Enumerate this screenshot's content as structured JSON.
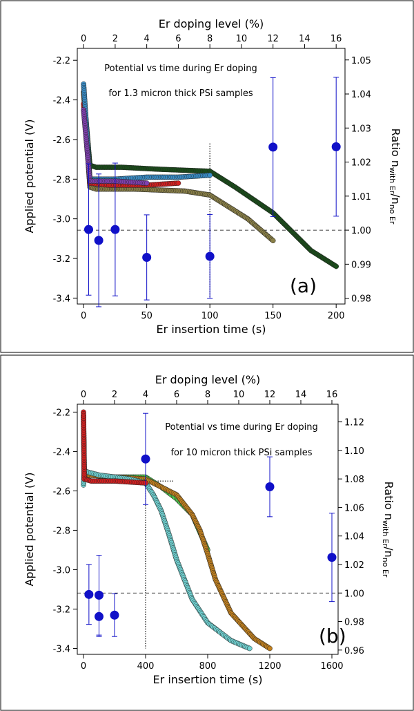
{
  "chart_data": [
    {
      "type": "scatter",
      "panel": "(a)",
      "annotation_lines": [
        "Potential vs time during Er doping",
        "for 1.3 micron thick PSi samples"
      ],
      "xlabel_bottom": "Er insertion time (s)",
      "xlabel_top": "Er doping level (%)",
      "ylabel_left": "Applied potential (V)",
      "ylabel_right": "Ratio n",
      "ylabel_right_sub1": "with Er",
      "ylabel_right_mid": "/n",
      "ylabel_right_sub2": "no Er",
      "xlim_bottom": [
        -5,
        207
      ],
      "xticks_bottom": [
        "0",
        "50",
        "100",
        "150",
        "200"
      ],
      "xlim_top": [
        -0.4,
        16.56
      ],
      "xticks_top": [
        "0",
        "2",
        "4",
        "6",
        "8",
        "10",
        "12",
        "14",
        "16"
      ],
      "ylim_left": [
        -3.43,
        -2.14
      ],
      "yticks_left": [
        "-2.2",
        "-2.4",
        "-2.6",
        "-2.8",
        "-3.0",
        "-3.2",
        "-3.4"
      ],
      "ylim_right": [
        0.9783,
        1.0534
      ],
      "yticks_right": [
        "0.98",
        "0.99",
        "1.00",
        "1.01",
        "1.02",
        "1.03",
        "1.04",
        "1.05"
      ],
      "reference_line_ratio": 1.0,
      "vertical_marker": {
        "x": 100,
        "y_from": -2.62,
        "y_to": -3.4
      },
      "potential_curves": [
        {
          "name": "dark-green",
          "color": "#1a4d1a",
          "x": [
            0,
            5,
            10,
            30,
            60,
            100,
            120,
            150,
            180,
            200
          ],
          "y": [
            -2.36,
            -2.73,
            -2.74,
            -2.74,
            -2.75,
            -2.76,
            -2.84,
            -2.97,
            -3.16,
            -3.24
          ]
        },
        {
          "name": "olive",
          "color": "#8a8048",
          "x": [
            0,
            5,
            10,
            40,
            80,
            100,
            130,
            150
          ],
          "y": [
            -2.36,
            -2.84,
            -2.85,
            -2.85,
            -2.86,
            -2.88,
            -3.0,
            -3.11
          ]
        },
        {
          "name": "red",
          "color": "#d42020",
          "x": [
            0,
            5,
            20,
            50,
            75
          ],
          "y": [
            -2.42,
            -2.82,
            -2.83,
            -2.83,
            -2.82
          ]
        },
        {
          "name": "blue",
          "color": "#3a8ec8",
          "x": [
            0,
            5,
            25,
            50,
            75,
            100
          ],
          "y": [
            -2.32,
            -2.8,
            -2.8,
            -2.79,
            -2.79,
            -2.78
          ]
        },
        {
          "name": "purple",
          "color": "#8040b0",
          "x": [
            0,
            5,
            25,
            50
          ],
          "y": [
            -2.45,
            -2.81,
            -2.81,
            -2.82
          ]
        }
      ],
      "ratio_points": {
        "color": "#1010c8",
        "x": [
          4,
          12,
          25,
          50,
          100,
          150,
          200
        ],
        "y": [
          1.0002,
          0.997,
          1.0002,
          0.992,
          0.9923,
          1.0244,
          1.0245
        ],
        "err": [
          0.0193,
          0.0195,
          0.0195,
          0.0125,
          0.0123,
          0.0204,
          0.0204
        ]
      }
    },
    {
      "type": "scatter",
      "panel": "(b)",
      "annotation_lines": [
        "Potential vs time during Er doping",
        "for 10 micron thick PSi samples"
      ],
      "xlabel_bottom": "Er insertion time (s)",
      "xlabel_top": "Er doping level (%)",
      "ylabel_left": "Applied potential (V)",
      "ylabel_right": "Ratio n",
      "ylabel_right_sub1": "with Er",
      "ylabel_right_mid": "/n",
      "ylabel_right_sub2": "no Er",
      "xlim_bottom": [
        -40,
        1640
      ],
      "xticks_bottom": [
        "0",
        "400",
        "800",
        "1200",
        "1600"
      ],
      "xlim_top": [
        -0.4,
        16.4
      ],
      "xticks_top": [
        "0",
        "2",
        "4",
        "6",
        "8",
        "10",
        "12",
        "14",
        "16"
      ],
      "ylim_left": [
        -3.43,
        -2.16
      ],
      "yticks_left": [
        "-2.2",
        "-2.4",
        "-2.6",
        "-2.8",
        "-3.0",
        "-3.2",
        "-3.4"
      ],
      "ylim_right": [
        0.957,
        1.1324
      ],
      "yticks_right": [
        "0.96",
        "0.98",
        "1.00",
        "1.02",
        "1.04",
        "1.06",
        "1.08",
        "1.10",
        "1.12"
      ],
      "reference_line_ratio": 1.0,
      "vertical_marker": {
        "x": 400,
        "y_from": -2.55,
        "y_to": -3.4
      },
      "horizontal_marker": {
        "x_from": 400,
        "x_to": 580,
        "y": -2.55
      },
      "potential_curves": [
        {
          "name": "green",
          "color": "#50d050",
          "x": [
            0,
            5,
            40,
            200,
            400,
            500,
            600,
            700,
            800
          ],
          "y": [
            -2.22,
            -2.52,
            -2.52,
            -2.53,
            -2.53,
            -2.58,
            -2.64,
            -2.72,
            -2.9
          ]
        },
        {
          "name": "orange",
          "color": "#c08020",
          "x": [
            0,
            5,
            40,
            200,
            400,
            600,
            700,
            750,
            800,
            850,
            950,
            1100,
            1200
          ],
          "y": [
            -2.22,
            -2.51,
            -2.52,
            -2.53,
            -2.54,
            -2.62,
            -2.72,
            -2.8,
            -2.92,
            -3.05,
            -3.22,
            -3.35,
            -3.4
          ]
        },
        {
          "name": "cyan",
          "color": "#70d0d0",
          "x": [
            0,
            5,
            100,
            300,
            400,
            450,
            500,
            550,
            600,
            650,
            700,
            800,
            950,
            1070
          ],
          "y": [
            -2.57,
            -2.5,
            -2.52,
            -2.54,
            -2.56,
            -2.62,
            -2.7,
            -2.82,
            -2.95,
            -3.05,
            -3.15,
            -3.27,
            -3.36,
            -3.4
          ]
        },
        {
          "name": "red",
          "color": "#d42020",
          "x": [
            0,
            5,
            50,
            200,
            400
          ],
          "y": [
            -2.2,
            -2.54,
            -2.55,
            -2.55,
            -2.56
          ]
        }
      ],
      "ratio_points": {
        "color": "#1010c8",
        "x": [
          35,
          100,
          100,
          200,
          400,
          1200,
          1600
        ],
        "y": [
          0.999,
          0.9985,
          0.9835,
          0.9845,
          1.094,
          1.0745,
          1.025
        ],
        "err": [
          0.021,
          0.028,
          0.014,
          0.015,
          0.032,
          0.021,
          0.031
        ]
      }
    }
  ]
}
